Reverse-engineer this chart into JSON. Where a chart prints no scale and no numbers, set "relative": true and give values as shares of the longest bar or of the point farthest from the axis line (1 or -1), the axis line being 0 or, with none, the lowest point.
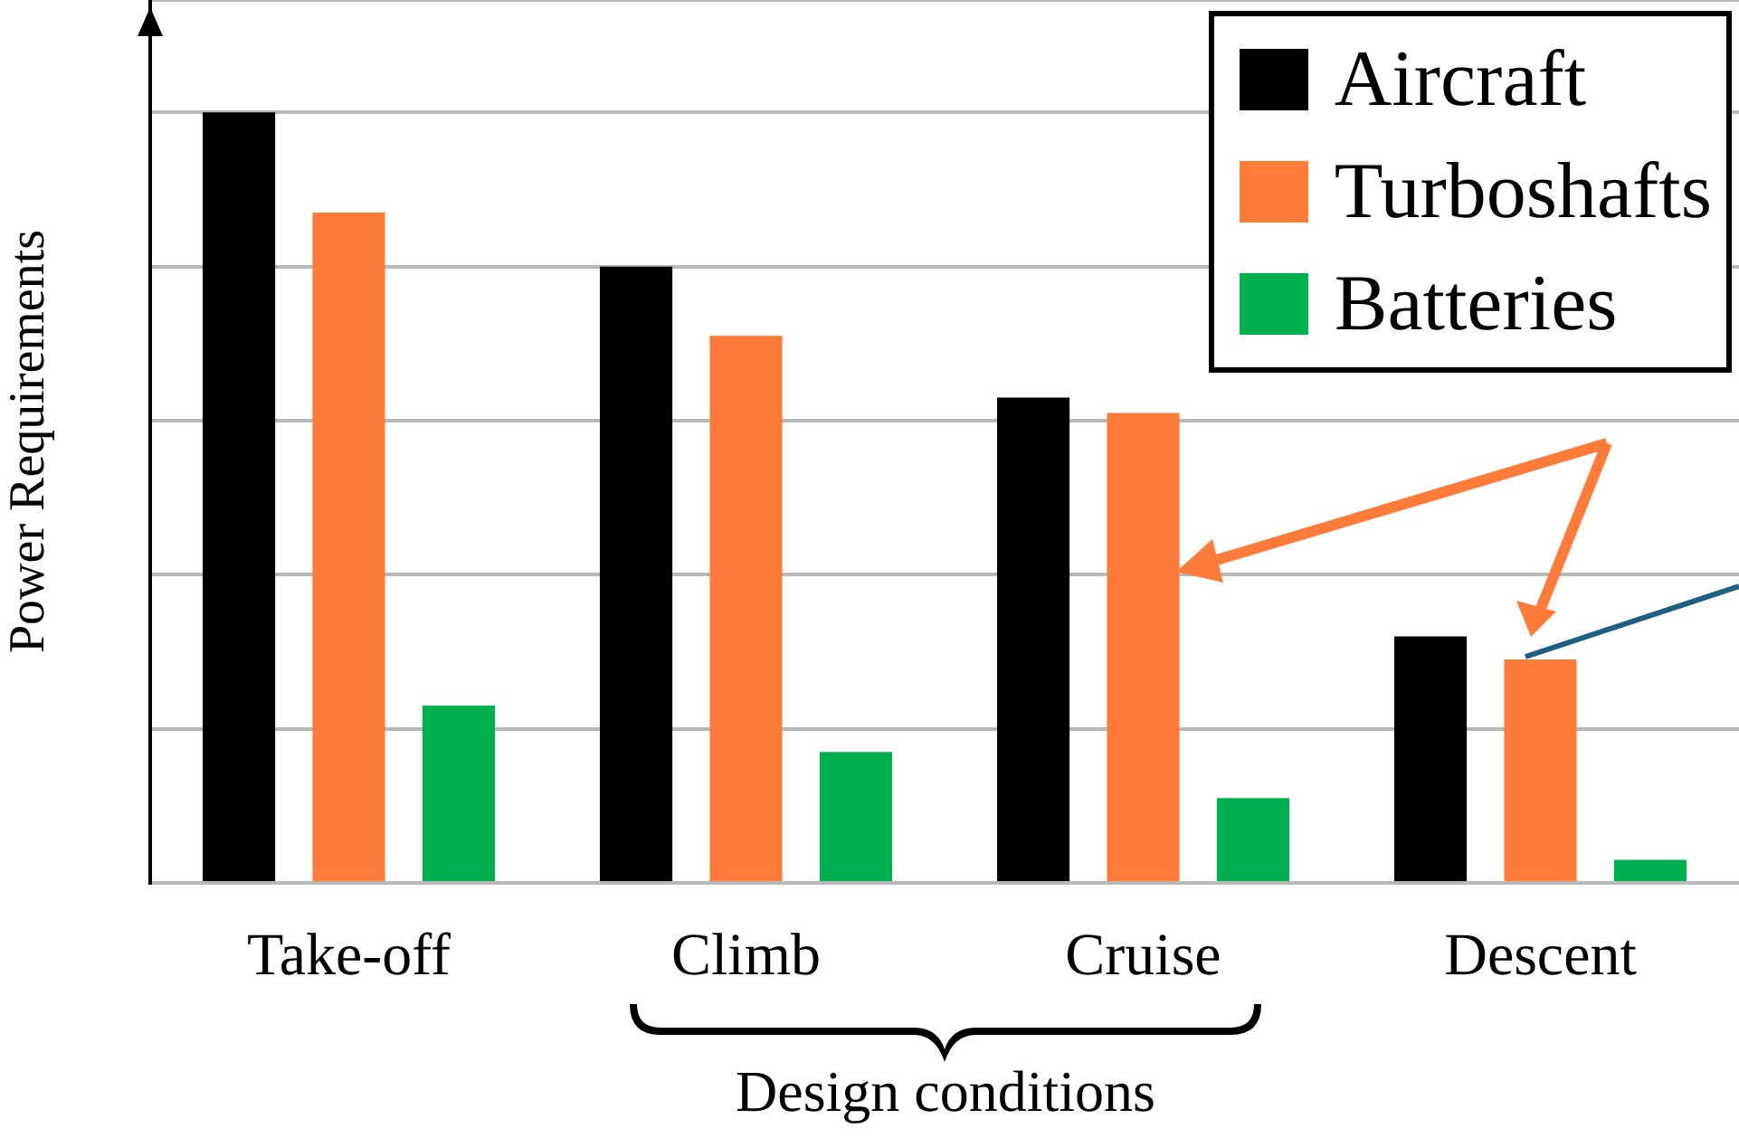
{
  "chart_data": {
    "type": "bar",
    "relative": true,
    "xlabel": "Design conditions",
    "ylabel": "Power Requirements",
    "categories": [
      "Take-off",
      "Climb",
      "Cruise",
      "Descent"
    ],
    "grid": "y",
    "legend": "top right",
    "series": [
      {
        "name": "Aircraft",
        "color": "#000000",
        "values": [
          1,
          0.8,
          0.63,
          0.32
        ]
      },
      {
        "name": "Turboshafts",
        "color": "#ff7b39",
        "values": [
          0.87,
          0.71,
          0.61,
          0.29
        ]
      },
      {
        "name": "Batteries",
        "color": "#00b050",
        "values": [
          0.23,
          0.17,
          0.11,
          0.03
        ]
      }
    ]
  }
}
